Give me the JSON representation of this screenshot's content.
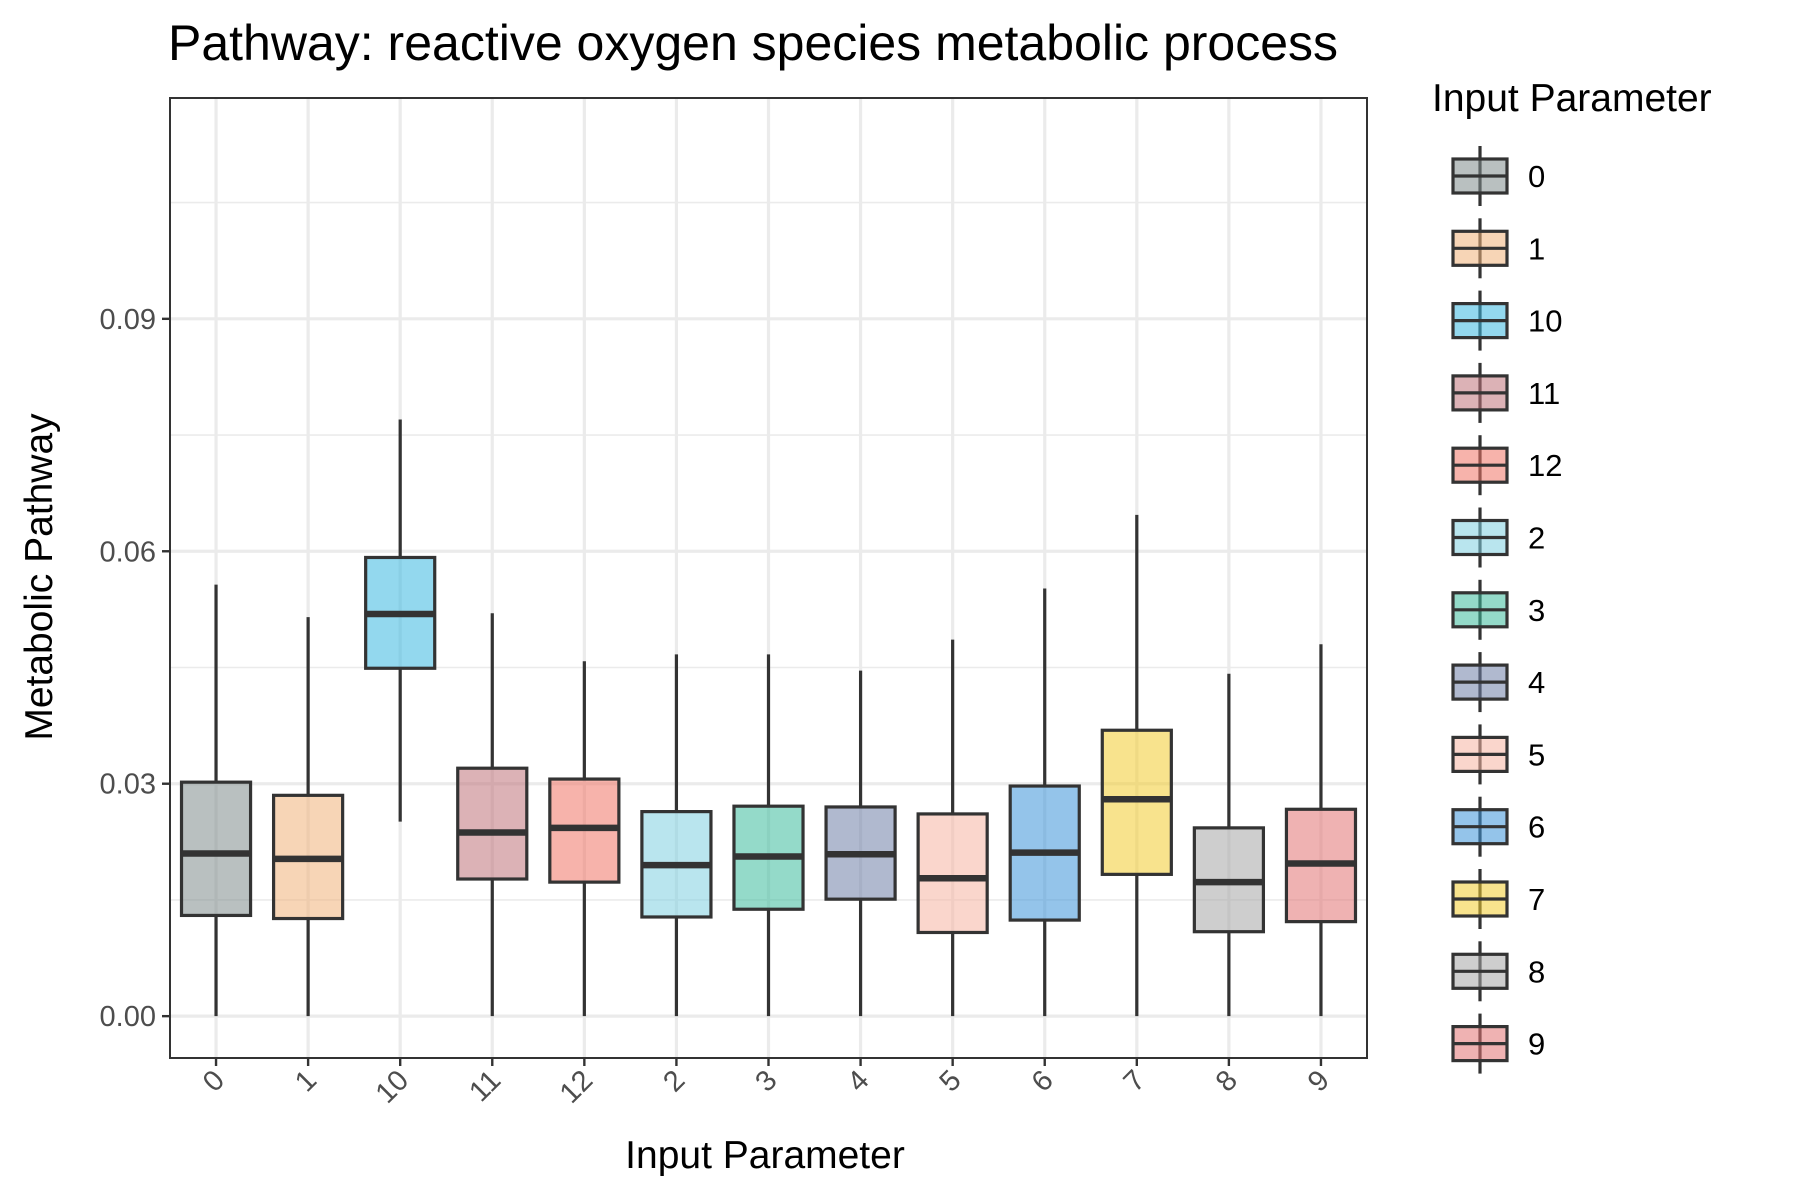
{
  "chart_data": {
    "type": "boxplot",
    "title": "Pathway: reactive oxygen species metabolic process",
    "xlabel": "Input Parameter",
    "ylabel": "Metabolic Pathway",
    "ylim": [
      -0.0054,
      0.1185
    ],
    "yticks": [
      0.0,
      0.03,
      0.06,
      0.09
    ],
    "ytick_labels": [
      "0.00",
      "0.03",
      "0.06",
      "0.09"
    ],
    "grid": true,
    "legend": {
      "title": "Input Parameter",
      "position": "right"
    },
    "categories": [
      "0",
      "1",
      "10",
      "11",
      "12",
      "2",
      "3",
      "4",
      "5",
      "6",
      "7",
      "8",
      "9"
    ],
    "boxes": [
      {
        "name": "0",
        "min": 0.0,
        "q1": 0.013,
        "median": 0.021,
        "q3": 0.0302,
        "max": 0.0557,
        "color": "#7f8c8d"
      },
      {
        "name": "1",
        "min": 0.0,
        "q1": 0.0126,
        "median": 0.0203,
        "q3": 0.0285,
        "max": 0.0515,
        "color": "#f0b27a"
      },
      {
        "name": "10",
        "min": 0.0251,
        "q1": 0.0449,
        "median": 0.0519,
        "q3": 0.0592,
        "max": 0.077,
        "color": "#3ab8e0"
      },
      {
        "name": "11",
        "min": 0.0,
        "q1": 0.0177,
        "median": 0.0237,
        "q3": 0.032,
        "max": 0.052,
        "color": "#c0727a"
      },
      {
        "name": "12",
        "min": 0.0,
        "q1": 0.0173,
        "median": 0.0243,
        "q3": 0.0306,
        "max": 0.0458,
        "color": "#f07466"
      },
      {
        "name": "2",
        "min": 0.0,
        "q1": 0.0128,
        "median": 0.0195,
        "q3": 0.0264,
        "max": 0.0467,
        "color": "#7fcfe0"
      },
      {
        "name": "3",
        "min": 0.0,
        "q1": 0.0138,
        "median": 0.0206,
        "q3": 0.0271,
        "max": 0.0467,
        "color": "#3cbc9c"
      },
      {
        "name": "4",
        "min": 0.0,
        "q1": 0.0151,
        "median": 0.0209,
        "q3": 0.027,
        "max": 0.0446,
        "color": "#6f7fa8"
      },
      {
        "name": "5",
        "min": 0.0,
        "q1": 0.0108,
        "median": 0.0178,
        "q3": 0.0261,
        "max": 0.0486,
        "color": "#f5b5a3"
      },
      {
        "name": "6",
        "min": 0.0,
        "q1": 0.0124,
        "median": 0.0211,
        "q3": 0.0297,
        "max": 0.0552,
        "color": "#3d93d8"
      },
      {
        "name": "7",
        "min": 0.0,
        "q1": 0.0183,
        "median": 0.028,
        "q3": 0.0369,
        "max": 0.0647,
        "color": "#f2cc30"
      },
      {
        "name": "8",
        "min": 0.0,
        "q1": 0.0109,
        "median": 0.0173,
        "q3": 0.0243,
        "max": 0.0442,
        "color": "#a6a6a6"
      },
      {
        "name": "9",
        "min": 0.0,
        "q1": 0.0122,
        "median": 0.0197,
        "q3": 0.0267,
        "max": 0.048,
        "color": "#e27273"
      }
    ],
    "legend_order": [
      "0",
      "1",
      "10",
      "11",
      "12",
      "2",
      "3",
      "4",
      "5",
      "6",
      "7",
      "8",
      "9"
    ]
  }
}
